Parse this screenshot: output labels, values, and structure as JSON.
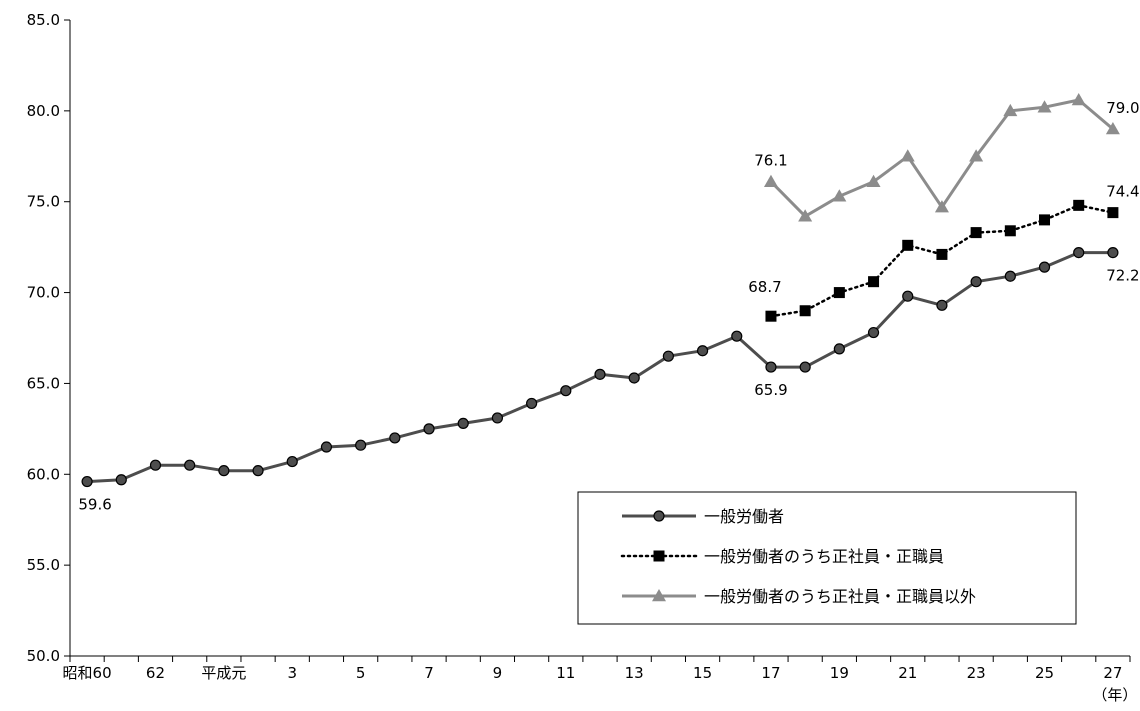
{
  "chart_data": {
    "type": "line",
    "x": [
      "昭和60",
      "61",
      "62",
      "63",
      "平成元",
      "2",
      "3",
      "4",
      "5",
      "6",
      "7",
      "8",
      "9",
      "10",
      "11",
      "12",
      "13",
      "14",
      "15",
      "16",
      "17",
      "18",
      "19",
      "20",
      "21",
      "22",
      "23",
      "24",
      "25",
      "26",
      "27"
    ],
    "x_tick_labels": [
      "昭和60",
      "",
      "62",
      "",
      "平成元",
      "",
      "3",
      "",
      "5",
      "",
      "7",
      "",
      "9",
      "",
      "11",
      "",
      "13",
      "",
      "15",
      "",
      "17",
      "",
      "19",
      "",
      "21",
      "",
      "23",
      "",
      "25",
      "",
      "27"
    ],
    "x_unit": "（年）",
    "ylim": [
      50.0,
      85.0
    ],
    "y_ticks": [
      "50.0",
      "55.0",
      "60.0",
      "65.0",
      "70.0",
      "75.0",
      "80.0",
      "85.0"
    ],
    "series": [
      {
        "name": "一般労働者",
        "color": "#4d4d4d",
        "marker": "circle",
        "line_style": "solid",
        "values": [
          59.6,
          59.7,
          60.5,
          60.5,
          60.2,
          60.2,
          60.7,
          61.5,
          61.6,
          62.0,
          62.5,
          62.8,
          63.1,
          63.9,
          64.6,
          65.5,
          65.3,
          66.5,
          66.8,
          67.6,
          65.9,
          65.9,
          66.9,
          67.8,
          69.8,
          69.3,
          70.6,
          70.9,
          71.4,
          72.2,
          72.2
        ]
      },
      {
        "name": "一般労働者のうち正社員・正職員",
        "color": "#000000",
        "marker": "square",
        "line_style": "dotted",
        "values": [
          null,
          null,
          null,
          null,
          null,
          null,
          null,
          null,
          null,
          null,
          null,
          null,
          null,
          null,
          null,
          null,
          null,
          null,
          null,
          null,
          68.7,
          69.0,
          70.0,
          70.6,
          72.6,
          72.1,
          73.3,
          73.4,
          74.0,
          74.8,
          74.4
        ]
      },
      {
        "name": "一般労働者のうち正社員・正職員以外",
        "color": "#8c8c8c",
        "marker": "triangle",
        "line_style": "solid",
        "values": [
          null,
          null,
          null,
          null,
          null,
          null,
          null,
          null,
          null,
          null,
          null,
          null,
          null,
          null,
          null,
          null,
          null,
          null,
          null,
          null,
          76.1,
          74.2,
          75.3,
          76.1,
          77.5,
          74.7,
          77.5,
          80.0,
          80.2,
          80.6,
          79.0
        ]
      }
    ],
    "data_labels": [
      {
        "series": 0,
        "index": 0,
        "text": "59.6",
        "pos": "below"
      },
      {
        "series": 0,
        "index": 20,
        "text": "65.9",
        "pos": "below"
      },
      {
        "series": 0,
        "index": 30,
        "text": "72.2",
        "pos": "below"
      },
      {
        "series": 1,
        "index": 20,
        "text": "68.7",
        "pos": "above-left"
      },
      {
        "series": 1,
        "index": 30,
        "text": "74.4",
        "pos": "above"
      },
      {
        "series": 2,
        "index": 20,
        "text": "76.1",
        "pos": "above"
      },
      {
        "series": 2,
        "index": 30,
        "text": "79.0",
        "pos": "above"
      }
    ],
    "legend_position": "bottom-right",
    "grid": false
  }
}
